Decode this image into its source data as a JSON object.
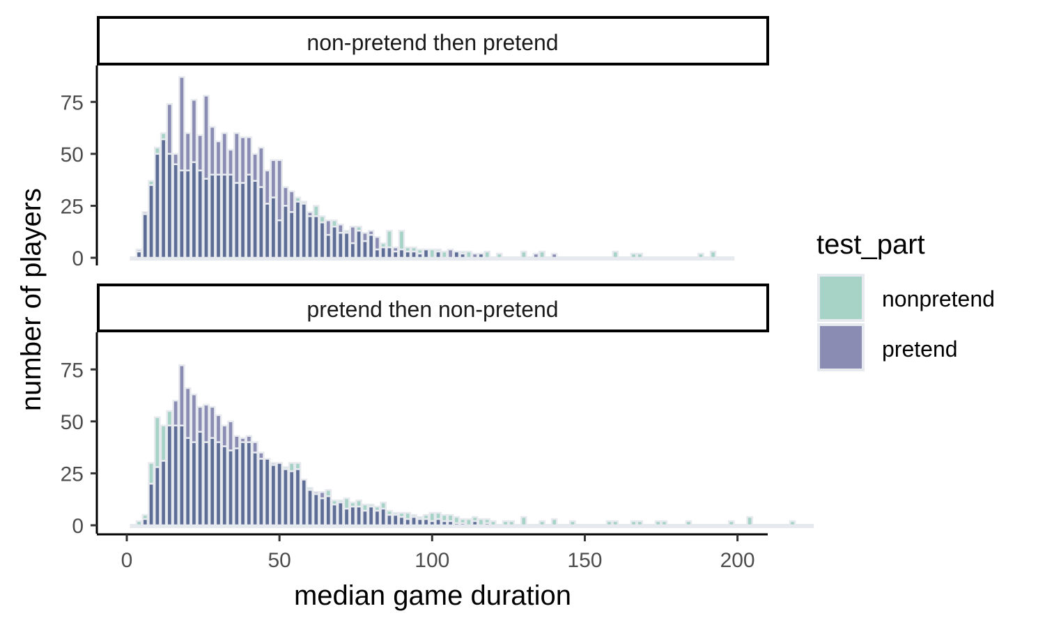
{
  "chart_data": {
    "type": "bar",
    "subtype": "faceted overlaid histogram",
    "xlabel": "median game duration",
    "ylabel": "number of players",
    "xlim": [
      -10,
      210
    ],
    "ylim": [
      -3,
      92
    ],
    "xticks": [
      0,
      50,
      100,
      150,
      200
    ],
    "yticks": [
      0,
      25,
      50,
      75
    ],
    "grid": false,
    "bin_width": 2,
    "legend": {
      "title": "test_part",
      "position": "right",
      "entries": [
        "nonpretend",
        "pretend"
      ]
    },
    "colors": {
      "nonpretend": "#a6d3c6",
      "pretend": "#8b8cb3",
      "overlap": "#5d6d96",
      "outline": "#e6e9ee"
    },
    "panels": [
      {
        "strip": "non-pretend then pretend",
        "bin_start": 1,
        "series": [
          {
            "name": "nonpretend",
            "values": [
              0,
              3,
              21,
              37,
              53,
              60,
              50,
              45,
              42,
              42,
              46,
              42,
              38,
              40,
              40,
              40,
              40,
              36,
              36,
              40,
              37,
              34,
              26,
              29,
              18,
              25,
              22,
              29,
              27,
              20,
              25,
              20,
              11,
              18,
              12,
              13,
              7,
              15,
              8,
              11,
              4,
              7,
              13,
              3,
              13,
              5,
              5,
              4,
              4,
              4,
              4,
              3,
              0,
              3,
              3,
              3,
              0,
              2,
              3,
              0,
              2,
              0,
              0,
              0,
              3,
              0,
              0,
              3,
              0,
              0,
              0,
              0,
              0,
              0,
              0,
              0,
              0,
              0,
              0,
              3,
              0,
              0,
              2,
              2,
              0,
              0,
              0,
              0,
              0,
              0,
              0,
              0,
              0,
              2,
              0,
              3,
              0,
              0,
              0
            ]
          },
          {
            "name": "pretend",
            "values": [
              0,
              4,
              22,
              35,
              50,
              57,
              74,
              50,
              87,
              60,
              76,
              59,
              78,
              63,
              56,
              60,
              52,
              60,
              58,
              58,
              50,
              53,
              42,
              47,
              47,
              34,
              32,
              27,
              26,
              22,
              20,
              17,
              18,
              15,
              16,
              12,
              15,
              13,
              12,
              13,
              10,
              5,
              5,
              5,
              4,
              3,
              3,
              2,
              4,
              0,
              3,
              0,
              4,
              3,
              2,
              0,
              2,
              2,
              0,
              0,
              0,
              0,
              0,
              0,
              0,
              0,
              2,
              0,
              0,
              2,
              0,
              0,
              0,
              0,
              0,
              0,
              0,
              0,
              0,
              0,
              0,
              0,
              0,
              0,
              0,
              0,
              0,
              0,
              0,
              0,
              0,
              0,
              0,
              0,
              0,
              0,
              0,
              0,
              0
            ]
          }
        ]
      },
      {
        "strip": "pretend then non-pretend",
        "bin_start": 1,
        "series": [
          {
            "name": "nonpretend",
            "values": [
              0,
              2,
              5,
              30,
              52,
              48,
              55,
              48,
              48,
              42,
              40,
              45,
              40,
              42,
              40,
              38,
              36,
              37,
              40,
              40,
              35,
              32,
              32,
              29,
              30,
              28,
              30,
              30,
              22,
              18,
              15,
              13,
              17,
              12,
              12,
              13,
              11,
              12,
              10,
              10,
              9,
              11,
              7,
              6,
              6,
              6,
              5,
              4,
              5,
              6,
              6,
              5,
              5,
              4,
              3,
              3,
              4,
              3,
              3,
              2,
              0,
              2,
              2,
              0,
              4,
              0,
              0,
              2,
              0,
              3,
              0,
              0,
              2,
              0,
              0,
              0,
              0,
              0,
              2,
              2,
              0,
              0,
              2,
              2,
              0,
              0,
              2,
              2,
              0,
              0,
              0,
              2,
              0,
              0,
              0,
              0,
              0,
              0,
              2,
              0,
              0,
              4,
              0,
              0,
              0,
              0,
              0,
              0,
              2,
              0,
              0,
              0
            ]
          },
          {
            "name": "pretend",
            "values": [
              0,
              0,
              3,
              20,
              28,
              31,
              48,
              60,
              77,
              66,
              63,
              57,
              58,
              57,
              53,
              48,
              50,
              43,
              42,
              43,
              40,
              35,
              32,
              30,
              30,
              27,
              26,
              27,
              22,
              17,
              16,
              16,
              14,
              10,
              11,
              8,
              9,
              9,
              7,
              9,
              7,
              8,
              5,
              5,
              4,
              3,
              4,
              3,
              3,
              2,
              3,
              2,
              2,
              1,
              1,
              0,
              2,
              0,
              1,
              0,
              0,
              0,
              0,
              0,
              0,
              0,
              0,
              0,
              0,
              0,
              0,
              0,
              0,
              0,
              0,
              0,
              0,
              0,
              0,
              0,
              0,
              0,
              0,
              0,
              0,
              0,
              0,
              0,
              0,
              0,
              0,
              0,
              0,
              0,
              0,
              0,
              0,
              0,
              0,
              0,
              0,
              0,
              0
            ]
          }
        ]
      }
    ]
  }
}
